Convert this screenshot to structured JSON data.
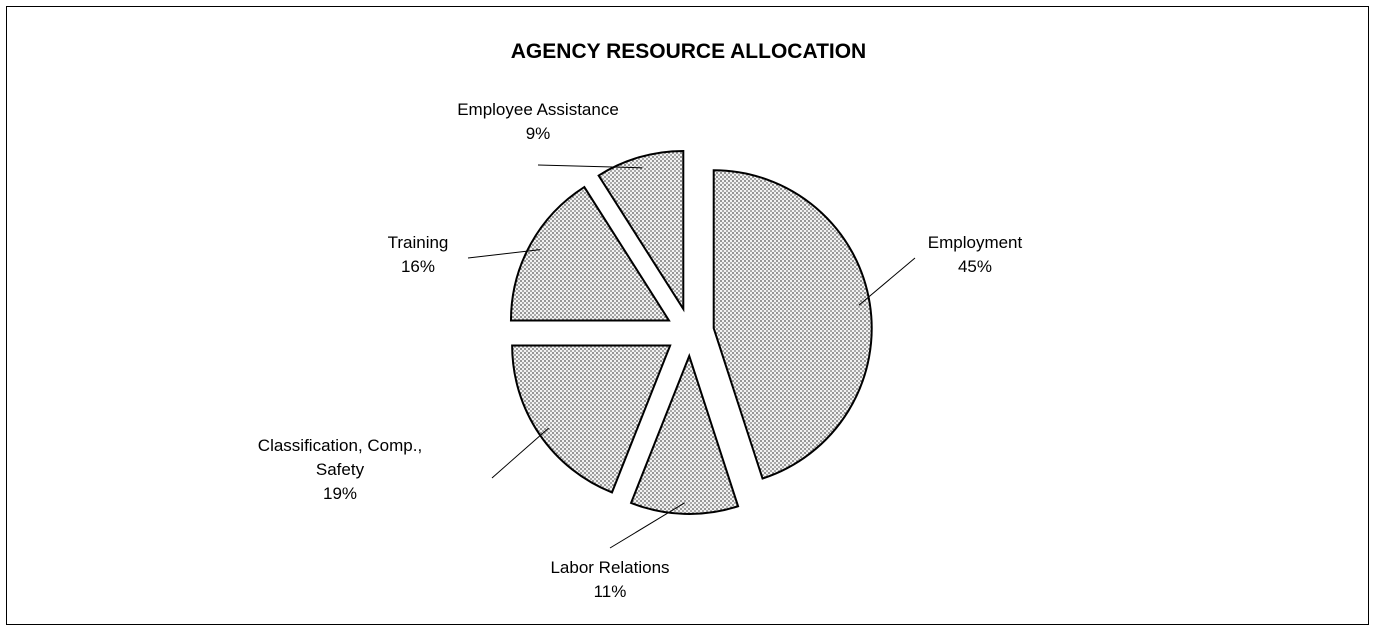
{
  "chart_data": {
    "type": "pie",
    "title": "AGENCY RESOURCE ALLOCATION",
    "categories": [
      "Employment",
      "Labor Relations",
      "Classification, Comp., Safety",
      "Training",
      "Employee Assistance"
    ],
    "values": [
      45,
      11,
      19,
      16,
      9
    ],
    "value_labels": [
      "45%",
      "11%",
      "19%",
      "16%",
      "9%"
    ]
  }
}
